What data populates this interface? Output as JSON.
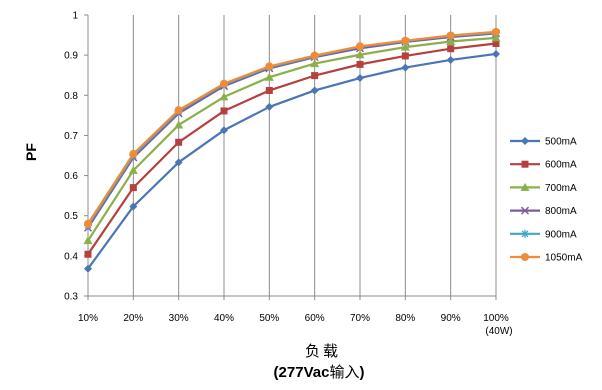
{
  "chart_data": {
    "type": "line",
    "categories": [
      "10%",
      "20%",
      "30%",
      "40%",
      "50%",
      "60%",
      "70%",
      "80%",
      "90%",
      "100%"
    ],
    "x_last_sublabel": "(40W)",
    "ylabel": "PF",
    "xlabel_line1": "负载",
    "xlabel_line2_bold": "(277Vac",
    "xlabel_line2_normal": "输入",
    "xlabel_line2_close": ")",
    "ylim": [
      0.3,
      1.0
    ],
    "yticks": [
      "0.3",
      "0.4",
      "0.5",
      "0.6",
      "0.7",
      "0.8",
      "0.9",
      "1"
    ],
    "grid": "vertical",
    "legend_position": "right",
    "series": [
      {
        "name": "500mA",
        "color": "#4a76b5",
        "marker": "diamond",
        "values": [
          0.368,
          0.523,
          0.633,
          0.713,
          0.771,
          0.812,
          0.843,
          0.869,
          0.888,
          0.903
        ]
      },
      {
        "name": "600mA",
        "color": "#b5403d",
        "marker": "square",
        "values": [
          0.404,
          0.57,
          0.683,
          0.761,
          0.812,
          0.849,
          0.877,
          0.898,
          0.916,
          0.929
        ]
      },
      {
        "name": "700mA",
        "color": "#8ab04a",
        "marker": "triangle",
        "values": [
          0.438,
          0.613,
          0.726,
          0.796,
          0.845,
          0.879,
          0.901,
          0.92,
          0.934,
          0.943
        ]
      },
      {
        "name": "800mA",
        "color": "#7b5b9c",
        "marker": "x",
        "values": [
          0.47,
          0.645,
          0.755,
          0.823,
          0.867,
          0.895,
          0.917,
          0.933,
          0.945,
          0.954
        ]
      },
      {
        "name": "900mA",
        "color": "#41a7c4",
        "marker": "star",
        "values": [
          0.476,
          0.65,
          0.76,
          0.827,
          0.87,
          0.897,
          0.921,
          0.935,
          0.948,
          0.956
        ]
      },
      {
        "name": "1050mA",
        "color": "#f08c36",
        "marker": "circle",
        "values": [
          0.48,
          0.654,
          0.763,
          0.829,
          0.872,
          0.899,
          0.922,
          0.936,
          0.949,
          0.958
        ]
      }
    ]
  }
}
